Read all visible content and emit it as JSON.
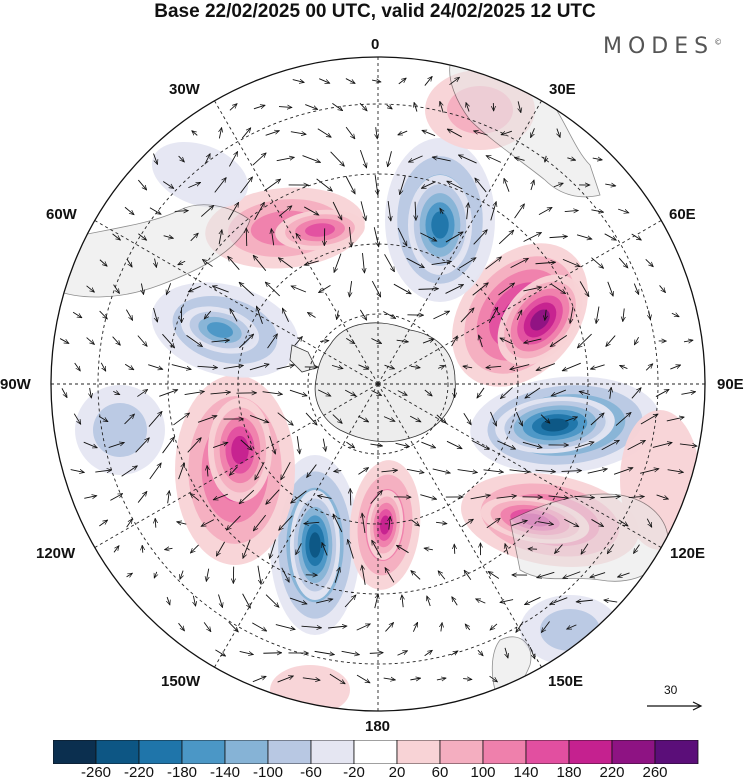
{
  "title": "Base 22/02/2025 00 UTC, valid 24/02/2025 12 UTC",
  "brand": {
    "text": "MODES",
    "mark": "©"
  },
  "longitude_labels": [
    {
      "text": "0"
    },
    {
      "text": "30E"
    },
    {
      "text": "60E"
    },
    {
      "text": "90E"
    },
    {
      "text": "120E"
    },
    {
      "text": "150E"
    },
    {
      "text": "180"
    },
    {
      "text": "150W"
    },
    {
      "text": "120W"
    },
    {
      "text": "90W"
    },
    {
      "text": "60W"
    },
    {
      "text": "30W"
    }
  ],
  "reference_vector": {
    "label": "30"
  },
  "colorbar": {
    "ticks": [
      "-260",
      "-220",
      "-180",
      "-140",
      "-100",
      "-60",
      "-20",
      "20",
      "60",
      "100",
      "140",
      "180",
      "220",
      "260"
    ],
    "colors": [
      "#0b2f4f",
      "#0d5684",
      "#1f75aa",
      "#4b97c6",
      "#86b3d6",
      "#b8c8e3",
      "#e5e6f2",
      "#ffffff",
      "#f8d3d6",
      "#f4aec0",
      "#ef80ac",
      "#e24fa0",
      "#c5218f",
      "#8e1383",
      "#5b0e79"
    ]
  },
  "map": {
    "projection": "south-polar-stereographic",
    "features": [
      "geopotential-anomaly-shading",
      "wind-vectors",
      "coastlines",
      "graticule"
    ],
    "colors": {
      "antarctica": "#ededed",
      "land": "#e6e6e6",
      "graticule": "#222222"
    }
  }
}
